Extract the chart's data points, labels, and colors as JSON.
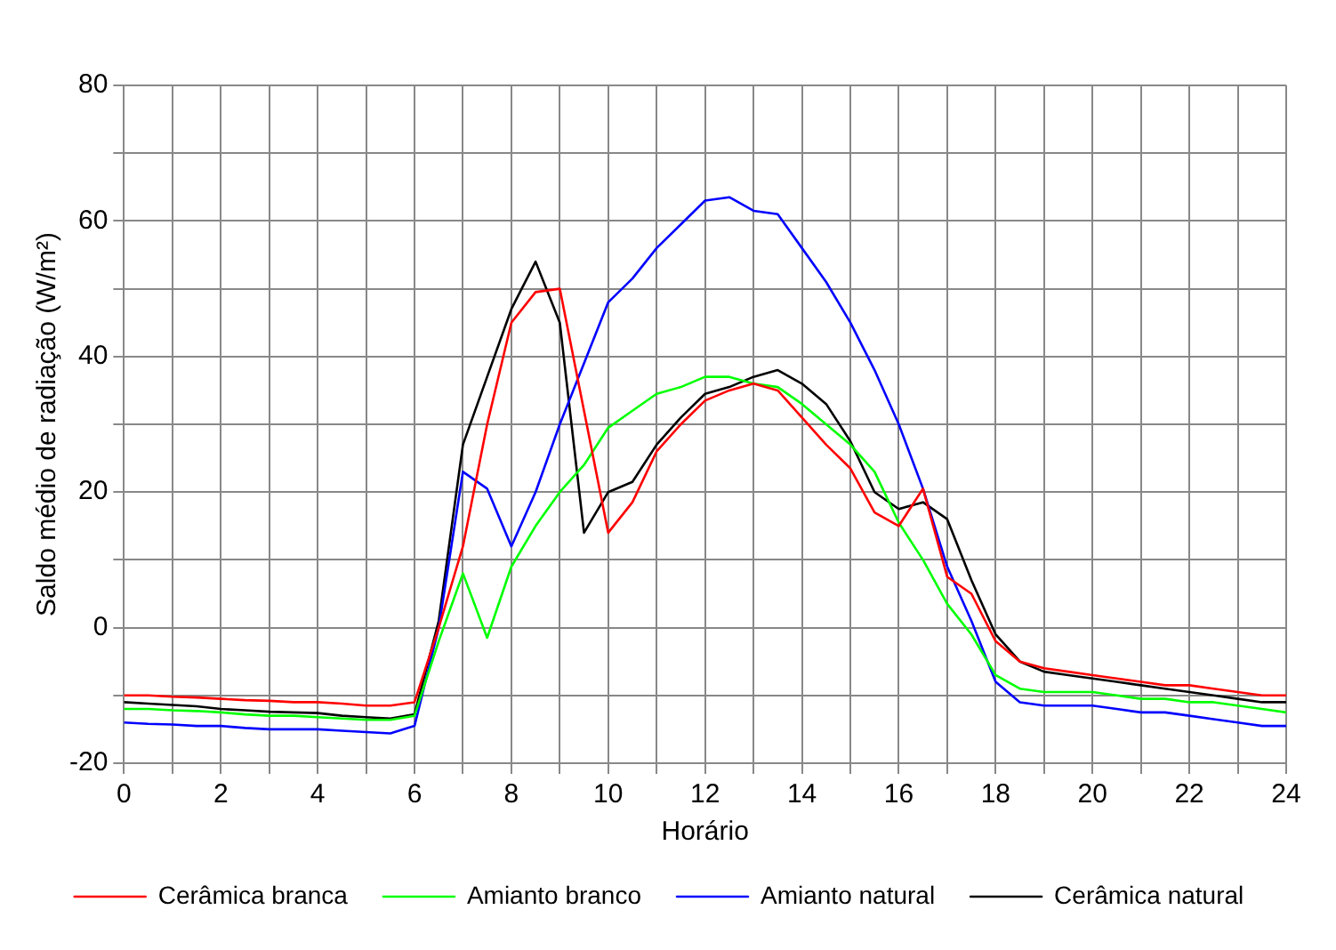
{
  "chart_data": {
    "type": "line",
    "xlabel": "Horário",
    "ylabel": "Saldo médio de radiação (W/m²)",
    "x": [
      0,
      0.5,
      1,
      1.5,
      2,
      2.5,
      3,
      3.5,
      4,
      4.5,
      5,
      5.5,
      6,
      6.5,
      7,
      7.5,
      8,
      8.5,
      9,
      9.5,
      10,
      10.5,
      11,
      11.5,
      12,
      12.5,
      13,
      13.5,
      14,
      14.5,
      15,
      15.5,
      16,
      16.5,
      17,
      17.5,
      18,
      18.5,
      19,
      19.5,
      20,
      20.5,
      21,
      21.5,
      22,
      22.5,
      23,
      23.5,
      24
    ],
    "series": [
      {
        "name": "Cerâmica branca",
        "color": "#ff0000",
        "values": [
          -10,
          -10,
          -10.2,
          -10.3,
          -10.5,
          -10.7,
          -10.8,
          -11,
          -11,
          -11.2,
          -11.5,
          -11.5,
          -11,
          0,
          12,
          30,
          45,
          49.5,
          50,
          32,
          14,
          18.5,
          26,
          30,
          33.5,
          35,
          36,
          35,
          31,
          27,
          23.5,
          17,
          15,
          20.5,
          7.5,
          5,
          -2,
          -5,
          -6,
          -6.5,
          -7,
          -7.5,
          -8,
          -8.5,
          -8.5,
          -9,
          -9.5,
          -10,
          -10
        ]
      },
      {
        "name": "Amianto branco",
        "color": "#00ff00",
        "values": [
          -12,
          -12,
          -12.2,
          -12.3,
          -12.5,
          -12.8,
          -13,
          -13,
          -13.2,
          -13.4,
          -13.6,
          -13.6,
          -13,
          -2,
          8,
          -1.5,
          9,
          15,
          20,
          24,
          29.5,
          32,
          34.5,
          35.5,
          37,
          37,
          36,
          35.5,
          33,
          30,
          27,
          23,
          15.5,
          10,
          3.5,
          -1,
          -7,
          -9,
          -9.5,
          -9.5,
          -9.5,
          -10,
          -10.5,
          -10.5,
          -11,
          -11,
          -11.5,
          -12,
          -12.5
        ]
      },
      {
        "name": "Amianto natural",
        "color": "#0000ff",
        "values": [
          -14,
          -14.2,
          -14.3,
          -14.5,
          -14.5,
          -14.8,
          -15,
          -15,
          -15,
          -15.2,
          -15.4,
          -15.6,
          -14.5,
          0,
          23,
          20.5,
          12,
          20,
          30,
          39,
          48,
          51.5,
          56,
          59.5,
          63,
          63.5,
          61.5,
          61,
          56,
          51,
          45,
          38,
          30,
          20.5,
          9,
          1,
          -8,
          -11,
          -11.5,
          -11.5,
          -11.5,
          -12,
          -12.5,
          -12.5,
          -13,
          -13.5,
          -14,
          -14.5,
          -14.5
        ]
      },
      {
        "name": "Cerâmica natural",
        "color": "#000000",
        "values": [
          -11,
          -11.2,
          -11.4,
          -11.6,
          -12,
          -12.2,
          -12.4,
          -12.5,
          -12.6,
          -13,
          -13.2,
          -13.4,
          -12.8,
          1,
          27,
          37,
          47,
          54,
          45,
          14,
          20,
          21.5,
          27,
          31,
          34.5,
          35.5,
          37,
          38,
          36,
          33,
          27.5,
          20,
          17.5,
          18.5,
          16,
          7,
          -1,
          -5,
          -6.5,
          -7,
          -7.5,
          -8,
          -8.5,
          -9,
          -9.5,
          -10,
          -10.5,
          -11,
          -11
        ]
      }
    ],
    "xlim": [
      0,
      24
    ],
    "xticks": [
      0,
      {
        "value": 1,
        "label": null
      },
      2,
      {
        "value": 3,
        "label": null
      },
      4,
      {
        "value": 5,
        "label": null
      },
      6,
      {
        "value": 7,
        "label": null
      },
      8,
      {
        "value": 9,
        "label": null
      },
      10,
      {
        "value": 11,
        "label": null
      },
      12,
      {
        "value": 13,
        "label": null
      },
      14,
      {
        "value": 15,
        "label": null
      },
      16,
      {
        "value": 17,
        "label": null
      },
      18,
      {
        "value": 19,
        "label": null
      },
      20,
      {
        "value": 21,
        "label": null
      },
      22,
      {
        "value": 23,
        "label": null
      },
      24
    ],
    "ylim": [
      -20,
      80
    ],
    "yticks": [
      -20,
      {
        "value": -10,
        "label": null
      },
      0,
      {
        "value": 10,
        "label": null
      },
      20,
      {
        "value": 30,
        "label": null
      },
      40,
      {
        "value": 50,
        "label": null
      },
      60,
      {
        "value": 70,
        "label": null
      },
      80
    ],
    "grid": true,
    "legend": "bottom"
  }
}
